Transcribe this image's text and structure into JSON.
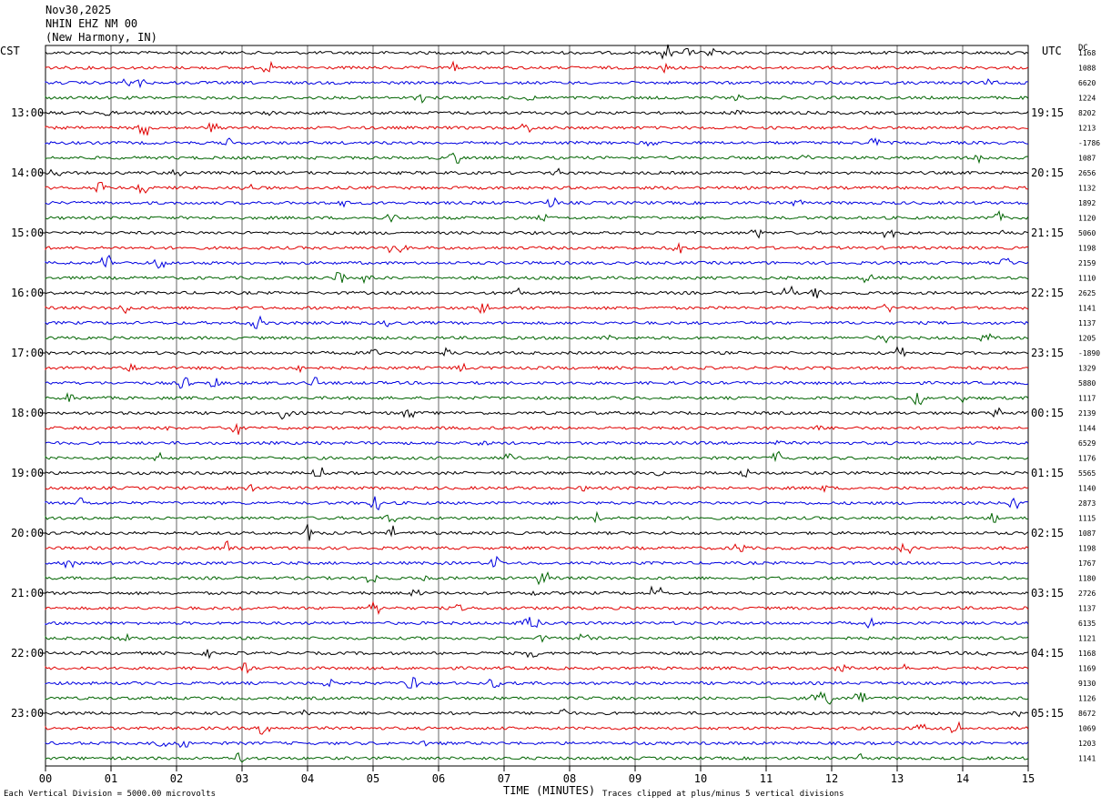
{
  "header": {
    "date": "Nov30,2025",
    "station": "NHIN EHZ NM 00",
    "location": "(New Harmony, IN)"
  },
  "left_zone": "CST",
  "right_zone": "UTC",
  "dc_label": "DC",
  "footer": {
    "scale_note": "Each Vertical Division = 5000.00 microvolts",
    "xlabel": "TIME (MINUTES)",
    "clip_note": "Traces clipped at plus/minus 5 vertical divisions"
  },
  "colors": {
    "trace_cycle": [
      "#000000",
      "#e00000",
      "#0000e0",
      "#006400"
    ],
    "grid": "#000000"
  },
  "chart_data": {
    "type": "line",
    "title": "",
    "xlabel": "TIME (MINUTES)",
    "ylabel": "",
    "xlim": [
      0,
      15
    ],
    "x_ticks": [
      "00",
      "01",
      "02",
      "03",
      "04",
      "05",
      "06",
      "07",
      "08",
      "09",
      "10",
      "11",
      "12",
      "13",
      "14",
      "15"
    ],
    "grid": true,
    "rows_per_hour": 4,
    "row_minutes": 15,
    "left_hour_labels": [
      "13:00",
      "14:00",
      "15:00",
      "16:00",
      "17:00",
      "18:00",
      "19:00",
      "20:00",
      "21:00",
      "22:00",
      "23:00"
    ],
    "right_hour_labels": [
      "19:15",
      "20:15",
      "21:15",
      "22:15",
      "23:15",
      "00:15",
      "01:15",
      "02:15",
      "03:15",
      "04:15",
      "05:15"
    ],
    "dc_offsets": [
      "1168",
      "1088",
      "6620",
      "1224",
      "8202",
      "1213",
      "-1786",
      "1087",
      "2656",
      "1132",
      "1892",
      "1120",
      "5060",
      "1198",
      "2159",
      "1110",
      "2625",
      "1141",
      "1137",
      "1205",
      "-1890",
      "1329",
      "5880",
      "1117",
      "2139",
      "1144",
      "6529",
      "1176",
      "5565",
      "1140",
      "2873",
      "1115",
      "1087",
      "1198",
      "1767",
      "1180",
      "2726",
      "1137",
      "6135",
      "1121",
      "1168",
      "1169",
      "9130",
      "1126",
      "8672",
      "1069",
      "1203",
      "1141"
    ]
  }
}
